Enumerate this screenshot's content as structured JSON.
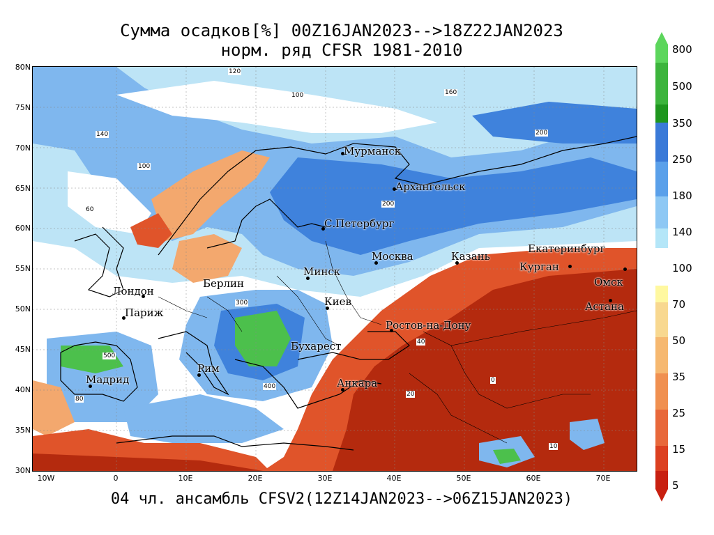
{
  "title_line1": "Сумма осадков[%] 00Z16JAN2023-->18Z22JAN2023",
  "title_line2": "норм. ряд CFSR 1981-2010",
  "footer": "04 чл. ансамбль CFSV2(12Z14JAN2023-->06Z15JAN2023)",
  "lat_labels": [
    "80N",
    "75N",
    "70N",
    "65N",
    "60N",
    "55N",
    "50N",
    "45N",
    "40N",
    "35N",
    "30N"
  ],
  "lon_labels": [
    "10W",
    "0",
    "10E",
    "20E",
    "30E",
    "40E",
    "50E",
    "60E",
    "70E"
  ],
  "cities": [
    {
      "name": "Мурманск"
    },
    {
      "name": "Архангельск"
    },
    {
      "name": "С.Петербург"
    },
    {
      "name": "Москва"
    },
    {
      "name": "Казань"
    },
    {
      "name": "Екатеринбург"
    },
    {
      "name": "Курган"
    },
    {
      "name": "Омск"
    },
    {
      "name": "Астана"
    },
    {
      "name": "Минск"
    },
    {
      "name": "Киев"
    },
    {
      "name": "Берлин"
    },
    {
      "name": "Лондон"
    },
    {
      "name": "Париж"
    },
    {
      "name": "Мадрид"
    },
    {
      "name": "Рим"
    },
    {
      "name": "Бухарест"
    },
    {
      "name": "Ростов-на-Дону"
    },
    {
      "name": "Анкара"
    }
  ],
  "contour_labels": [
    "120",
    "100",
    "200",
    "160",
    "140",
    "100",
    "200",
    "60",
    "300",
    "500",
    "400",
    "80",
    "40",
    "20",
    "10",
    "0"
  ],
  "legend": {
    "upper": {
      "labels": [
        "800",
        "500",
        "350",
        "250",
        "180",
        "140"
      ],
      "colors": [
        "#5cd65c",
        "#3cb43c",
        "#1e961e",
        "#3a7ad8",
        "#5aa0ea",
        "#8ec8f4",
        "#b4e6f8"
      ]
    },
    "mid_label": "100",
    "lower": {
      "labels": [
        "70",
        "50",
        "35",
        "25",
        "15",
        "5"
      ],
      "colors": [
        "#fff8a0",
        "#f8d890",
        "#f6b870",
        "#f09050",
        "#e8683a",
        "#dc4020",
        "#c82010"
      ]
    }
  },
  "colors": {
    "dry_dark": "#b42a0e",
    "dry_mid": "#e0542a",
    "dry_light": "#f3a86e",
    "near_normal": "#ffffff",
    "wet_light": "#bde4f6",
    "wet_mid": "#7fb7ee",
    "wet_dark": "#3f82dc",
    "very_wet": "#4cc04c"
  }
}
